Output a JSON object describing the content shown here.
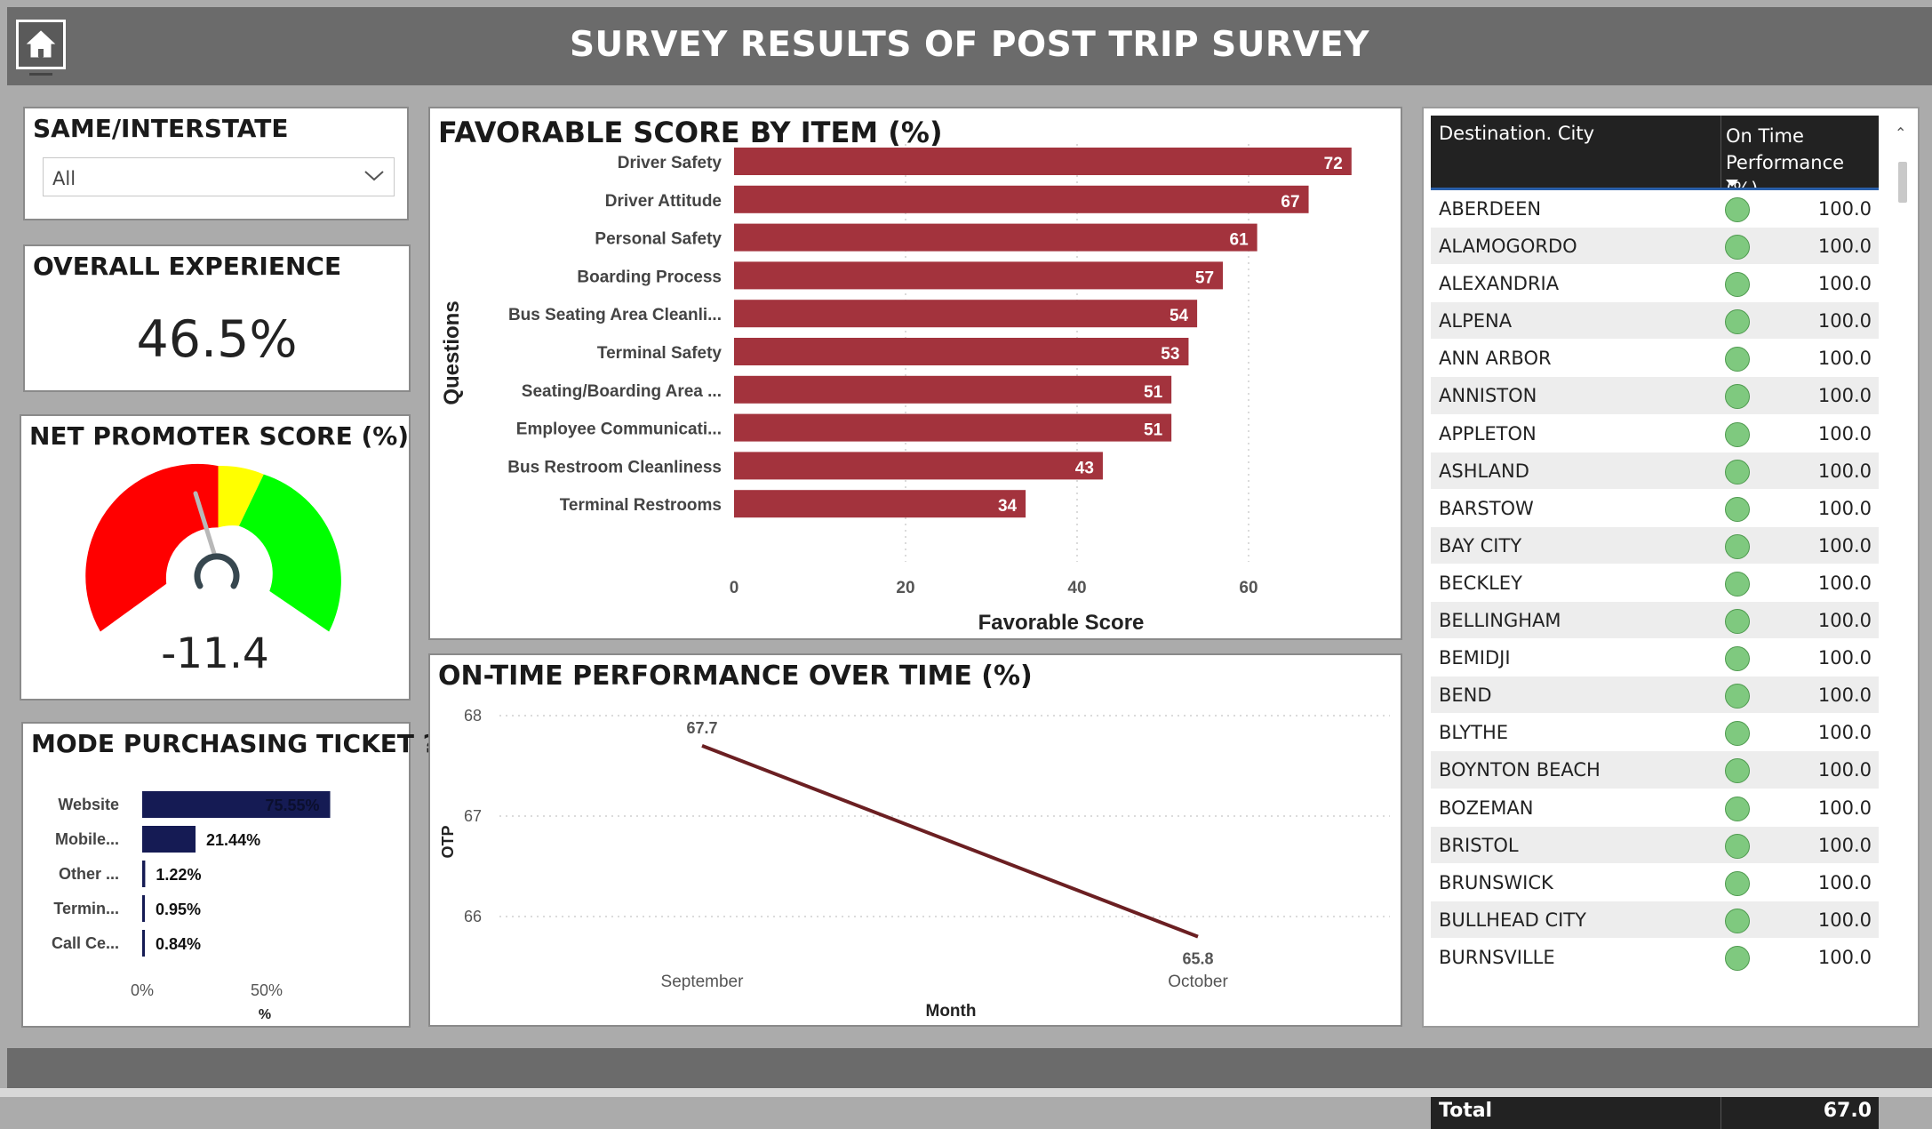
{
  "header": {
    "title": "SURVEY RESULTS OF POST TRIP SURVEY",
    "home_icon": "home-icon"
  },
  "slicer": {
    "title": "SAME/INTERSTATE",
    "selected": "All"
  },
  "overall": {
    "title": "OVERALL EXPERIENCE",
    "value": "46.5%"
  },
  "nps": {
    "title": "NET PROMOTER SCORE (%)",
    "value": "-11.4",
    "colors": {
      "red": "#ff0000",
      "yellow": "#ffff00",
      "green": "#00ff00"
    }
  },
  "favorable": {
    "title": "FAVORABLE SCORE BY ITEM (%)",
    "chart_data": {
      "type": "bar",
      "orientation": "horizontal",
      "categories": [
        "Driver Safety",
        "Driver Attitude",
        "Personal Safety",
        "Boarding Process",
        "Bus Seating Area Cleanli...",
        "Terminal Safety",
        "Seating/Boarding Area ...",
        "Employee Communicati...",
        "Bus Restroom Cleanliness",
        "Terminal Restrooms"
      ],
      "values": [
        72,
        67,
        61,
        57,
        54,
        53,
        51,
        51,
        43,
        34
      ],
      "xlabel": "Favorable Score",
      "ylabel": "Questions",
      "xticks": [
        "0",
        "20",
        "40",
        "60"
      ],
      "xlim": [
        0,
        77
      ],
      "grid": true,
      "color": "#a3333d"
    }
  },
  "otp": {
    "title": "ON-TIME PERFORMANCE OVER TIME (%)",
    "chart_data": {
      "type": "line",
      "categories": [
        "September",
        "October"
      ],
      "values": [
        67.7,
        65.8
      ],
      "value_labels": [
        "67.7",
        "65.8"
      ],
      "xlabel": "Month",
      "ylabel": "OTP",
      "yticks": [
        "66",
        "67",
        "68"
      ],
      "ylim": [
        65.8,
        68
      ],
      "grid": true,
      "color": "#6b1f22"
    }
  },
  "mode": {
    "title": "MODE PURCHASING TICKET ?",
    "chart_data": {
      "type": "bar",
      "orientation": "horizontal",
      "categories": [
        "Website",
        "Mobile...",
        "Other ...",
        "Termin...",
        "Call Ce..."
      ],
      "values": [
        75.55,
        21.44,
        1.22,
        0.95,
        0.84
      ],
      "value_labels": [
        "75.55%",
        "21.44%",
        "1.22%",
        "0.95%",
        "0.84%"
      ],
      "xlabel": "%",
      "xticks": [
        "0%",
        "50%"
      ],
      "xlim": [
        0,
        100
      ],
      "color": "#151b54"
    }
  },
  "table": {
    "col1": "Destination. City",
    "col2_line1": "On Time",
    "col2_line2": "Performance (%)",
    "rows": [
      {
        "city": "ABERDEEN",
        "value": "100.0"
      },
      {
        "city": "ALAMOGORDO",
        "value": "100.0"
      },
      {
        "city": "ALEXANDRIA",
        "value": "100.0"
      },
      {
        "city": "ALPENA",
        "value": "100.0"
      },
      {
        "city": "ANN ARBOR",
        "value": "100.0"
      },
      {
        "city": "ANNISTON",
        "value": "100.0"
      },
      {
        "city": "APPLETON",
        "value": "100.0"
      },
      {
        "city": "ASHLAND",
        "value": "100.0"
      },
      {
        "city": "BARSTOW",
        "value": "100.0"
      },
      {
        "city": "BAY CITY",
        "value": "100.0"
      },
      {
        "city": "BECKLEY",
        "value": "100.0"
      },
      {
        "city": "BELLINGHAM",
        "value": "100.0"
      },
      {
        "city": "BEMIDJI",
        "value": "100.0"
      },
      {
        "city": "BEND",
        "value": "100.0"
      },
      {
        "city": "BLYTHE",
        "value": "100.0"
      },
      {
        "city": "BOYNTON BEACH",
        "value": "100.0"
      },
      {
        "city": "BOZEMAN",
        "value": "100.0"
      },
      {
        "city": "BRISTOL",
        "value": "100.0"
      },
      {
        "city": "BRUNSWICK",
        "value": "100.0"
      },
      {
        "city": "BULLHEAD CITY",
        "value": "100.0"
      },
      {
        "city": "BURNSVILLE",
        "value": "100.0"
      }
    ],
    "total_label": "Total",
    "total_value": "67.0",
    "status_color": "#7fc97f"
  }
}
